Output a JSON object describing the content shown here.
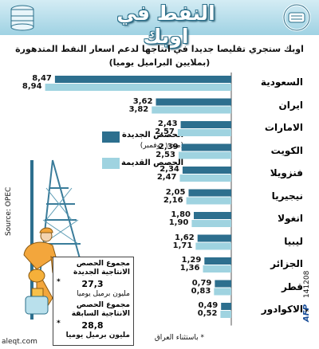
{
  "header": {
    "title": "النفط في اوبك",
    "subtitle_line1": "اوبك ستجري تقليصا جديدا في انتاجها لدعم اسعار النفط المتدهورة",
    "subtitle_line2": "(بملايين البراميل يوميا)"
  },
  "legend": {
    "new_label": "الحصص الجديدة",
    "new_sub": "(منذ ١ نوفمبر)",
    "old_label": "الحصص القديمة"
  },
  "colors": {
    "new_quota": "#2d6f8e",
    "old_quota": "#9fd3e0",
    "title_band": "#a9d6e6"
  },
  "chart_data": {
    "type": "bar",
    "orientation": "horizontal",
    "title": "النفط في اوبك",
    "subtitle": "اوبك ستجري تقليصا جديدا في انتاجها لدعم اسعار النفط المتدهورة (بملايين البراميل يوميا)",
    "categories": [
      "السعودية",
      "ايران",
      "الامارات",
      "الكويت",
      "فنزويلا",
      "نيجيريا",
      "انغولا",
      "ليبيا",
      "الجزائر",
      "قطر",
      "الاكوادور"
    ],
    "series": [
      {
        "name": "الحصص الجديدة",
        "values": [
          8.47,
          3.62,
          2.43,
          2.39,
          2.34,
          2.05,
          1.8,
          1.62,
          1.29,
          0.79,
          0.49
        ]
      },
      {
        "name": "الحصص القديمة",
        "values": [
          8.94,
          3.82,
          2.57,
          2.53,
          2.47,
          2.16,
          1.9,
          1.71,
          1.36,
          0.83,
          0.52
        ]
      }
    ],
    "value_labels": {
      "new": [
        "8,47",
        "3,62",
        "2,43",
        "2,39",
        "2,34",
        "2,05",
        "1,80",
        "1,62",
        "1,29",
        "0,79",
        "0,49"
      ],
      "old": [
        "8,94",
        "3,82",
        "2,57",
        "2,53",
        "2,47",
        "2,16",
        "1,90",
        "1,71",
        "1,36",
        "0,83",
        "0,52"
      ]
    },
    "country_marks": [
      "",
      "",
      "",
      "",
      "",
      "",
      "",
      "",
      "",
      "",
      "*"
    ],
    "xlim": [
      0,
      9.5
    ],
    "legend_position": "left-middle"
  },
  "totals": {
    "new_title": "مجموع الحصص الانتاجية الجديدة",
    "new_value": "27,3",
    "new_unit": "مليون برميل يوميا",
    "old_title": "مجموع الحصص الانتاجية السابقة",
    "old_value": "28,8",
    "old_unit": "مليون برميل يوميا",
    "new_mark": "*",
    "old_mark": "*",
    "note": "* باستثناء العراق"
  },
  "footer": {
    "source": "Source: OPEC",
    "agency": "AFP",
    "code": "141208",
    "watermark": "aleqt.com"
  }
}
